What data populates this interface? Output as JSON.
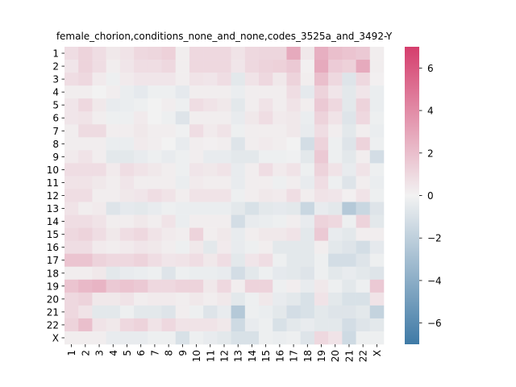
{
  "chart_data": {
    "type": "heatmap",
    "title": "female_chorion,conditions_none_and_none,codes_3525a_and_3492-Y",
    "xlabel": "",
    "ylabel": "",
    "labels": [
      "1",
      "2",
      "3",
      "4",
      "5",
      "6",
      "7",
      "8",
      "9",
      "10",
      "11",
      "12",
      "13",
      "14",
      "15",
      "16",
      "17",
      "18",
      "19",
      "20",
      "21",
      "22",
      "X"
    ],
    "vmin": -7,
    "vmax": 7,
    "colorbar_ticks": [
      6,
      4,
      2,
      0,
      -2,
      -4,
      -6
    ],
    "colorbar_tick_labels": [
      "6",
      "4",
      "2",
      "0",
      "−2",
      "−4",
      "−6"
    ],
    "colormap": {
      "low": "#3f7aa6",
      "mid": "#f2f2f2",
      "high": "#d53e6d"
    },
    "values": [
      [
        0.8,
        1.2,
        0.8,
        0.4,
        0.6,
        1.0,
        1.1,
        1.3,
        0.2,
        1.0,
        1.0,
        1.0,
        0.6,
        1.0,
        1.1,
        1.1,
        2.8,
        0.4,
        2.6,
        2.0,
        1.8,
        1.6,
        0.2
      ],
      [
        0.5,
        1.2,
        0.8,
        0.2,
        0.5,
        0.8,
        0.8,
        1.0,
        0.2,
        1.0,
        1.0,
        1.0,
        0.5,
        1.0,
        1.2,
        1.3,
        1.6,
        0.1,
        2.8,
        1.5,
        1.3,
        2.8,
        0.2
      ],
      [
        0.8,
        1.0,
        0.3,
        -0.2,
        0.3,
        0.5,
        0.5,
        0.5,
        0.2,
        0.6,
        0.5,
        0.8,
        -0.6,
        0.6,
        1.0,
        0.4,
        1.2,
        0.2,
        2.0,
        1.0,
        -0.8,
        1.0,
        0.1
      ],
      [
        0.2,
        0.2,
        0.0,
        0.2,
        -0.3,
        -0.5,
        -0.2,
        -0.2,
        -0.5,
        0.2,
        0.2,
        0.2,
        -0.3,
        0.2,
        0.2,
        0.2,
        0.8,
        -0.5,
        1.2,
        0.5,
        -0.6,
        0.5,
        -0.3
      ],
      [
        0.5,
        1.0,
        0.4,
        -0.4,
        -0.3,
        -0.2,
        0.0,
        0.2,
        -0.2,
        0.8,
        0.6,
        0.4,
        -0.6,
        0.2,
        0.6,
        0.2,
        0.6,
        0.2,
        1.6,
        1.0,
        -0.6,
        1.2,
        -0.3
      ],
      [
        0.5,
        0.6,
        0.2,
        -0.2,
        -0.2,
        0.3,
        0.0,
        -0.2,
        -0.8,
        0.2,
        0.2,
        0.2,
        -0.4,
        0.4,
        0.8,
        0.3,
        0.4,
        -0.3,
        1.2,
        0.6,
        -0.8,
        1.0,
        -0.2
      ],
      [
        0.2,
        0.9,
        0.9,
        0.2,
        0.2,
        0.4,
        0.2,
        0.2,
        -0.1,
        0.8,
        0.3,
        0.6,
        -0.2,
        0.2,
        0.2,
        0.2,
        0.4,
        -0.4,
        0.8,
        0.2,
        -0.6,
        0.2,
        -0.3
      ],
      [
        0.2,
        0.2,
        0.2,
        -0.3,
        -0.3,
        0.3,
        0.2,
        0.0,
        -0.4,
        0.2,
        0.1,
        0.2,
        -0.8,
        0.2,
        0.3,
        0.2,
        0.0,
        -1.2,
        1.2,
        -0.2,
        -0.8,
        1.2,
        -0.2
      ],
      [
        0.3,
        0.6,
        0.2,
        -0.6,
        -0.6,
        -0.4,
        -0.2,
        -0.4,
        -0.2,
        0.2,
        -0.4,
        -0.4,
        -0.6,
        -0.6,
        -0.2,
        -0.2,
        -0.1,
        -0.6,
        1.6,
        -0.2,
        -0.6,
        0.2,
        -1.2
      ],
      [
        0.8,
        0.8,
        0.8,
        0.3,
        0.8,
        0.6,
        0.4,
        0.2,
        -0.2,
        0.5,
        0.4,
        0.6,
        -0.4,
        0.2,
        0.8,
        0.3,
        0.6,
        -0.2,
        1.2,
        0.6,
        -0.4,
        0.6,
        -0.2
      ],
      [
        0.6,
        0.6,
        0.4,
        0.2,
        0.5,
        0.2,
        0.2,
        0.2,
        -0.3,
        0.3,
        0.2,
        0.2,
        -0.4,
        0.2,
        0.2,
        -0.2,
        0.2,
        -0.4,
        0.8,
        -0.2,
        -0.8,
        0.2,
        -0.3
      ],
      [
        0.8,
        0.8,
        0.2,
        0.2,
        0.4,
        0.5,
        0.8,
        0.6,
        0.2,
        0.6,
        0.6,
        0.6,
        -0.2,
        0.2,
        0.4,
        0.3,
        0.8,
        0.2,
        0.6,
        0.5,
        0.1,
        0.6,
        -0.2
      ],
      [
        0.6,
        0.2,
        0.3,
        -0.8,
        -0.5,
        -0.6,
        -0.4,
        -0.2,
        -0.3,
        -0.3,
        -0.3,
        -0.3,
        -0.6,
        -1.0,
        -0.6,
        -0.5,
        -0.6,
        -1.6,
        -0.4,
        -0.6,
        -2.4,
        -1.6,
        -0.8
      ],
      [
        0.8,
        0.8,
        0.6,
        0.2,
        0.2,
        0.4,
        0.2,
        0.6,
        -0.3,
        0.2,
        0.2,
        0.2,
        -1.2,
        -0.4,
        -0.3,
        -0.2,
        0.2,
        -0.4,
        1.2,
        1.0,
        -0.2,
        1.2,
        -0.6
      ],
      [
        1.0,
        1.2,
        0.8,
        0.4,
        0.8,
        1.0,
        0.6,
        0.3,
        0.2,
        1.2,
        0.2,
        0.4,
        -0.4,
        0.2,
        0.4,
        0.4,
        0.6,
        -0.6,
        1.6,
        -0.4,
        -0.6,
        0.2,
        0.2
      ],
      [
        0.8,
        0.8,
        0.3,
        0.2,
        0.3,
        0.5,
        0.4,
        0.2,
        -0.2,
        0.4,
        -0.6,
        0.3,
        -0.4,
        -0.2,
        0.2,
        -0.6,
        -0.6,
        -0.6,
        0.2,
        -0.6,
        -0.8,
        -1.2,
        -0.5
      ],
      [
        1.8,
        1.8,
        1.2,
        1.0,
        1.0,
        1.2,
        0.8,
        0.5,
        0.6,
        0.8,
        0.4,
        0.8,
        -0.6,
        0.5,
        0.8,
        -0.2,
        -0.6,
        -0.6,
        -0.2,
        -1.2,
        -1.2,
        -0.8,
        -0.2
      ],
      [
        0.2,
        0.2,
        0.4,
        -0.6,
        -0.4,
        -0.3,
        -0.2,
        -0.8,
        -0.2,
        -0.3,
        -0.3,
        -0.4,
        -1.2,
        -0.6,
        -0.2,
        -0.5,
        -0.6,
        -0.8,
        -0.2,
        -0.6,
        -0.4,
        -0.6,
        -0.8
      ],
      [
        1.8,
        2.2,
        2.4,
        1.6,
        1.8,
        1.6,
        1.0,
        1.0,
        1.2,
        1.2,
        0.4,
        1.0,
        0.2,
        1.2,
        1.2,
        -0.2,
        0.2,
        -0.4,
        0.4,
        -0.2,
        -0.6,
        -0.2,
        1.6
      ],
      [
        1.0,
        1.2,
        0.4,
        0.4,
        0.6,
        0.2,
        0.3,
        0.3,
        0.2,
        0.4,
        0.2,
        0.4,
        -0.6,
        -0.2,
        0.4,
        -0.4,
        -0.6,
        -1.0,
        0.6,
        -0.6,
        -1.0,
        -1.0,
        0.6
      ],
      [
        1.0,
        0.6,
        -0.6,
        -0.6,
        -0.2,
        -0.6,
        -0.6,
        -0.8,
        0.2,
        -0.2,
        -0.8,
        -0.4,
        -2.4,
        -0.2,
        -0.3,
        -0.6,
        -1.2,
        -1.0,
        -0.6,
        -0.8,
        -0.8,
        -0.6,
        -1.8
      ],
      [
        1.2,
        2.0,
        0.6,
        0.4,
        1.0,
        1.2,
        0.6,
        1.0,
        0.6,
        0.6,
        0.6,
        0.4,
        -1.4,
        -0.4,
        -0.2,
        -1.0,
        -0.6,
        -0.4,
        -0.6,
        -0.6,
        -1.2,
        -0.8,
        -0.6
      ],
      [
        0.2,
        0.2,
        0.2,
        -0.4,
        -0.4,
        -0.4,
        -0.2,
        -0.2,
        -1.0,
        -0.2,
        -0.4,
        -0.6,
        -1.0,
        -1.0,
        -0.2,
        -0.3,
        -0.2,
        -0.8,
        1.0,
        0.6,
        -1.4,
        -0.2,
        -0.2
      ]
    ]
  }
}
